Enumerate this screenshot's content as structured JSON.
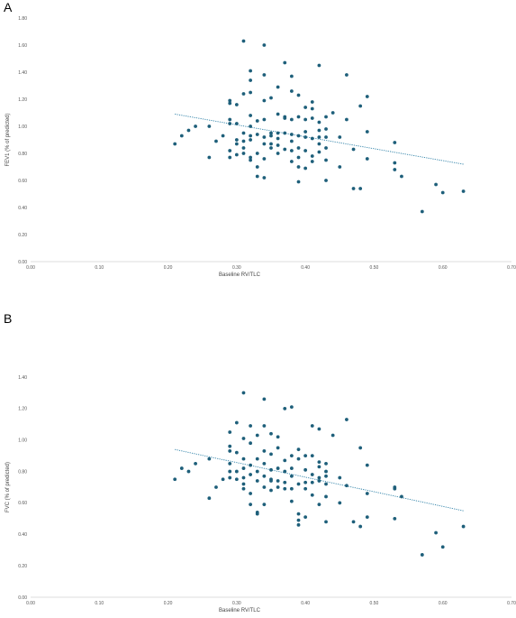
{
  "colors": {
    "marker": "#1e5f7a",
    "trend": "#2b7fa6",
    "axis": "#d0d0d0",
    "text": "#555555"
  },
  "chart_data": [
    {
      "panel": "A",
      "type": "scatter",
      "xlabel": "Baseline RV/TLC",
      "ylabel": "FEV1 (% of predicted)",
      "xlim": [
        0,
        0.7
      ],
      "ylim": [
        0,
        1.8
      ],
      "xticks": [
        "0.00",
        "0.10",
        "0.20",
        "0.30",
        "0.40",
        "0.50",
        "0.60",
        "0.70"
      ],
      "yticks": [
        "0.00",
        "0.20",
        "0.40",
        "0.60",
        "0.80",
        "1.00",
        "1.20",
        "1.40",
        "1.60",
        "1.80"
      ],
      "trendline": {
        "style": "dotted",
        "x": [
          0.21,
          0.63
        ],
        "y": [
          1.09,
          0.72
        ]
      },
      "points": [
        [
          0.21,
          0.87
        ],
        [
          0.22,
          0.93
        ],
        [
          0.23,
          0.97
        ],
        [
          0.24,
          1.0
        ],
        [
          0.26,
          1.0
        ],
        [
          0.26,
          0.77
        ],
        [
          0.27,
          0.89
        ],
        [
          0.28,
          0.93
        ],
        [
          0.29,
          1.19
        ],
        [
          0.29,
          1.17
        ],
        [
          0.29,
          1.05
        ],
        [
          0.29,
          1.02
        ],
        [
          0.29,
          0.82
        ],
        [
          0.29,
          0.77
        ],
        [
          0.3,
          1.16
        ],
        [
          0.3,
          1.02
        ],
        [
          0.3,
          0.9
        ],
        [
          0.3,
          0.87
        ],
        [
          0.3,
          0.79
        ],
        [
          0.31,
          1.63
        ],
        [
          0.31,
          1.24
        ],
        [
          0.31,
          0.95
        ],
        [
          0.31,
          0.89
        ],
        [
          0.31,
          0.84
        ],
        [
          0.31,
          0.8
        ],
        [
          0.32,
          1.41
        ],
        [
          0.32,
          1.34
        ],
        [
          0.32,
          1.25
        ],
        [
          0.32,
          1.08
        ],
        [
          0.32,
          1.0
        ],
        [
          0.32,
          0.93
        ],
        [
          0.32,
          0.9
        ],
        [
          0.32,
          0.77
        ],
        [
          0.32,
          0.75
        ],
        [
          0.33,
          1.04
        ],
        [
          0.33,
          0.94
        ],
        [
          0.33,
          0.8
        ],
        [
          0.33,
          0.7
        ],
        [
          0.33,
          0.63
        ],
        [
          0.34,
          1.6
        ],
        [
          0.34,
          1.38
        ],
        [
          0.34,
          1.19
        ],
        [
          0.34,
          1.05
        ],
        [
          0.34,
          0.92
        ],
        [
          0.34,
          0.87
        ],
        [
          0.34,
          0.76
        ],
        [
          0.34,
          0.62
        ],
        [
          0.35,
          1.21
        ],
        [
          0.35,
          0.95
        ],
        [
          0.35,
          0.93
        ],
        [
          0.35,
          0.87
        ],
        [
          0.35,
          0.84
        ],
        [
          0.36,
          1.29
        ],
        [
          0.36,
          1.09
        ],
        [
          0.36,
          0.95
        ],
        [
          0.36,
          0.91
        ],
        [
          0.36,
          0.86
        ],
        [
          0.36,
          0.8
        ],
        [
          0.37,
          1.47
        ],
        [
          0.37,
          1.07
        ],
        [
          0.37,
          1.06
        ],
        [
          0.37,
          0.95
        ],
        [
          0.37,
          0.83
        ],
        [
          0.38,
          1.37
        ],
        [
          0.38,
          1.26
        ],
        [
          0.38,
          1.05
        ],
        [
          0.38,
          0.94
        ],
        [
          0.38,
          0.89
        ],
        [
          0.38,
          0.82
        ],
        [
          0.38,
          0.74
        ],
        [
          0.39,
          1.23
        ],
        [
          0.39,
          1.07
        ],
        [
          0.39,
          0.93
        ],
        [
          0.39,
          0.84
        ],
        [
          0.39,
          0.77
        ],
        [
          0.39,
          0.7
        ],
        [
          0.39,
          0.59
        ],
        [
          0.4,
          1.14
        ],
        [
          0.4,
          1.05
        ],
        [
          0.4,
          0.96
        ],
        [
          0.4,
          0.92
        ],
        [
          0.4,
          0.82
        ],
        [
          0.4,
          0.69
        ],
        [
          0.41,
          1.18
        ],
        [
          0.41,
          1.13
        ],
        [
          0.41,
          1.06
        ],
        [
          0.41,
          0.91
        ],
        [
          0.41,
          0.78
        ],
        [
          0.41,
          0.74
        ],
        [
          0.42,
          1.45
        ],
        [
          0.42,
          1.03
        ],
        [
          0.42,
          0.97
        ],
        [
          0.42,
          0.92
        ],
        [
          0.42,
          0.87
        ],
        [
          0.42,
          0.81
        ],
        [
          0.43,
          1.07
        ],
        [
          0.43,
          0.98
        ],
        [
          0.43,
          0.92
        ],
        [
          0.43,
          0.84
        ],
        [
          0.43,
          0.75
        ],
        [
          0.43,
          0.6
        ],
        [
          0.44,
          1.1
        ],
        [
          0.45,
          0.92
        ],
        [
          0.45,
          0.7
        ],
        [
          0.46,
          1.38
        ],
        [
          0.46,
          1.05
        ],
        [
          0.47,
          0.83
        ],
        [
          0.47,
          0.54
        ],
        [
          0.48,
          1.15
        ],
        [
          0.48,
          0.54
        ],
        [
          0.49,
          1.22
        ],
        [
          0.49,
          0.96
        ],
        [
          0.49,
          0.76
        ],
        [
          0.53,
          0.88
        ],
        [
          0.53,
          0.73
        ],
        [
          0.53,
          0.68
        ],
        [
          0.54,
          0.63
        ],
        [
          0.57,
          0.37
        ],
        [
          0.59,
          0.57
        ],
        [
          0.6,
          0.51
        ],
        [
          0.63,
          0.52
        ]
      ]
    },
    {
      "panel": "B",
      "type": "scatter",
      "xlabel": "Baseline RV/TLC",
      "ylabel": "FVC (% of predicted)",
      "xlim": [
        0,
        0.7
      ],
      "ylim": [
        0,
        1.4
      ],
      "xticks": [
        "0.00",
        "0.10",
        "0.20",
        "0.30",
        "0.40",
        "0.50",
        "0.60",
        "0.70"
      ],
      "yticks": [
        "0.00",
        "0.20",
        "0.40",
        "0.60",
        "0.80",
        "1.00",
        "1.20",
        "1.40"
      ],
      "trendline": {
        "style": "dotted",
        "x": [
          0.21,
          0.63
        ],
        "y": [
          0.94,
          0.55
        ]
      },
      "points": [
        [
          0.21,
          0.75
        ],
        [
          0.22,
          0.82
        ],
        [
          0.23,
          0.8
        ],
        [
          0.24,
          0.85
        ],
        [
          0.26,
          0.88
        ],
        [
          0.26,
          0.63
        ],
        [
          0.27,
          0.7
        ],
        [
          0.28,
          0.75
        ],
        [
          0.29,
          1.05
        ],
        [
          0.29,
          0.96
        ],
        [
          0.29,
          0.93
        ],
        [
          0.29,
          0.85
        ],
        [
          0.29,
          0.8
        ],
        [
          0.29,
          0.76
        ],
        [
          0.3,
          1.11
        ],
        [
          0.3,
          0.92
        ],
        [
          0.3,
          0.8
        ],
        [
          0.3,
          0.75
        ],
        [
          0.31,
          1.3
        ],
        [
          0.31,
          1.01
        ],
        [
          0.31,
          0.88
        ],
        [
          0.31,
          0.82
        ],
        [
          0.31,
          0.76
        ],
        [
          0.31,
          0.72
        ],
        [
          0.31,
          0.69
        ],
        [
          0.32,
          1.09
        ],
        [
          0.32,
          0.98
        ],
        [
          0.32,
          0.84
        ],
        [
          0.32,
          0.78
        ],
        [
          0.32,
          0.66
        ],
        [
          0.32,
          0.59
        ],
        [
          0.33,
          1.03
        ],
        [
          0.33,
          0.88
        ],
        [
          0.33,
          0.8
        ],
        [
          0.33,
          0.74
        ],
        [
          0.33,
          0.54
        ],
        [
          0.33,
          0.53
        ],
        [
          0.34,
          1.26
        ],
        [
          0.34,
          1.09
        ],
        [
          0.34,
          0.93
        ],
        [
          0.34,
          0.85
        ],
        [
          0.34,
          0.77
        ],
        [
          0.34,
          0.7
        ],
        [
          0.34,
          0.59
        ],
        [
          0.35,
          1.04
        ],
        [
          0.35,
          0.91
        ],
        [
          0.35,
          0.81
        ],
        [
          0.35,
          0.75
        ],
        [
          0.35,
          0.74
        ],
        [
          0.35,
          0.68
        ],
        [
          0.36,
          1.02
        ],
        [
          0.36,
          0.95
        ],
        [
          0.36,
          0.82
        ],
        [
          0.36,
          0.74
        ],
        [
          0.36,
          0.7
        ],
        [
          0.37,
          1.2
        ],
        [
          0.37,
          0.87
        ],
        [
          0.37,
          0.8
        ],
        [
          0.37,
          0.73
        ],
        [
          0.37,
          0.69
        ],
        [
          0.38,
          1.21
        ],
        [
          0.38,
          0.9
        ],
        [
          0.38,
          0.82
        ],
        [
          0.38,
          0.77
        ],
        [
          0.38,
          0.69
        ],
        [
          0.38,
          0.61
        ],
        [
          0.39,
          0.94
        ],
        [
          0.39,
          0.88
        ],
        [
          0.39,
          0.72
        ],
        [
          0.39,
          0.53
        ],
        [
          0.39,
          0.49
        ],
        [
          0.39,
          0.46
        ],
        [
          0.4,
          0.9
        ],
        [
          0.4,
          0.81
        ],
        [
          0.4,
          0.73
        ],
        [
          0.4,
          0.69
        ],
        [
          0.4,
          0.51
        ],
        [
          0.41,
          1.09
        ],
        [
          0.41,
          0.9
        ],
        [
          0.41,
          0.78
        ],
        [
          0.41,
          0.73
        ],
        [
          0.41,
          0.65
        ],
        [
          0.42,
          1.07
        ],
        [
          0.42,
          0.86
        ],
        [
          0.42,
          0.83
        ],
        [
          0.42,
          0.76
        ],
        [
          0.42,
          0.74
        ],
        [
          0.42,
          0.59
        ],
        [
          0.43,
          0.85
        ],
        [
          0.43,
          0.8
        ],
        [
          0.43,
          0.77
        ],
        [
          0.43,
          0.72
        ],
        [
          0.43,
          0.64
        ],
        [
          0.43,
          0.48
        ],
        [
          0.44,
          1.03
        ],
        [
          0.45,
          0.76
        ],
        [
          0.45,
          0.6
        ],
        [
          0.46,
          1.13
        ],
        [
          0.46,
          0.71
        ],
        [
          0.47,
          0.48
        ],
        [
          0.48,
          0.95
        ],
        [
          0.48,
          0.45
        ],
        [
          0.49,
          0.84
        ],
        [
          0.49,
          0.66
        ],
        [
          0.49,
          0.51
        ],
        [
          0.53,
          0.7
        ],
        [
          0.53,
          0.69
        ],
        [
          0.53,
          0.5
        ],
        [
          0.54,
          0.64
        ],
        [
          0.57,
          0.27
        ],
        [
          0.59,
          0.41
        ],
        [
          0.6,
          0.32
        ],
        [
          0.63,
          0.45
        ]
      ]
    }
  ],
  "panels": {
    "a_label": "A",
    "b_label": "B"
  }
}
